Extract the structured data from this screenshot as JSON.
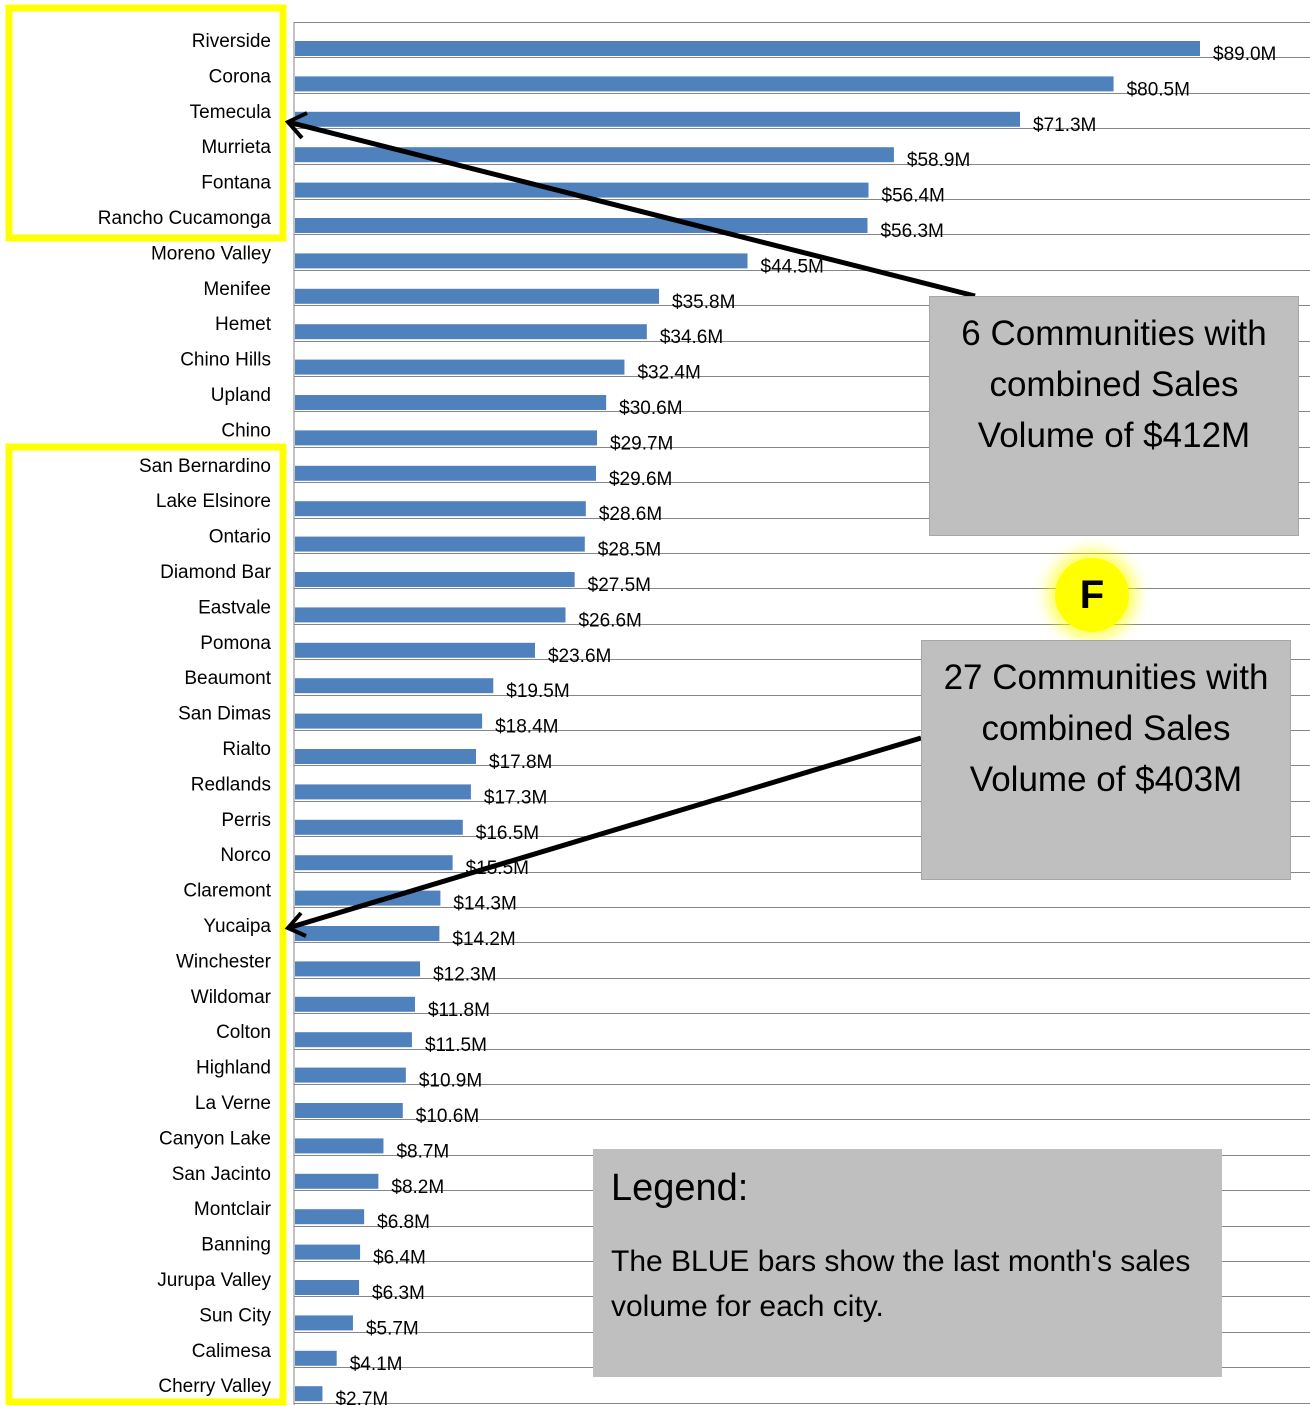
{
  "chart_data": {
    "type": "bar",
    "orientation": "horizontal",
    "categories": [
      "Riverside",
      "Corona",
      "Temecula",
      "Murrieta",
      "Fontana",
      "Rancho Cucamonga",
      "Moreno Valley",
      "Menifee",
      "Hemet",
      "Chino Hills",
      "Upland",
      "Chino",
      "San Bernardino",
      "Lake Elsinore",
      "Ontario",
      "Diamond Bar",
      "Eastvale",
      "Pomona",
      "Beaumont",
      "San Dimas",
      "Rialto",
      "Redlands",
      "Perris",
      "Norco",
      "Claremont",
      "Yucaipa",
      "Winchester",
      "Wildomar",
      "Colton",
      "Highland",
      "La Verne",
      "Canyon Lake",
      "San Jacinto",
      "Montclair",
      "Banning",
      "Jurupa Valley",
      "Sun City",
      "Calimesa",
      "Cherry Valley"
    ],
    "values": [
      89.0,
      80.5,
      71.3,
      58.9,
      56.4,
      56.3,
      44.5,
      35.8,
      34.6,
      32.4,
      30.6,
      29.7,
      29.6,
      28.6,
      28.5,
      27.5,
      26.6,
      23.6,
      19.5,
      18.4,
      17.8,
      17.3,
      16.5,
      15.5,
      14.3,
      14.2,
      12.3,
      11.8,
      11.5,
      10.9,
      10.6,
      8.7,
      8.2,
      6.8,
      6.4,
      6.3,
      5.7,
      4.1,
      2.7
    ],
    "value_labels": [
      "$89.0M",
      "$80.5M",
      "$71.3M",
      "$58.9M",
      "$56.4M",
      "$56.3M",
      "$44.5M",
      "$35.8M",
      "$34.6M",
      "$32.4M",
      "$30.6M",
      "$29.7M",
      "$29.6M",
      "$28.6M",
      "$28.5M",
      "$27.5M",
      "$26.6M",
      "$23.6M",
      "$19.5M",
      "$18.4M",
      "$17.8M",
      "$17.3M",
      "$16.5M",
      "$15.5M",
      "$14.3M",
      "$14.2M",
      "$12.3M",
      "$11.8M",
      "$11.5M",
      "$10.9M",
      "$10.6M",
      "$8.7M",
      "$8.2M",
      "$6.8M",
      "$6.4M",
      "$6.3M",
      "$5.7M",
      "$4.1M",
      "$2.7M"
    ],
    "bar_color": "#4f81bd",
    "grid": true,
    "xlim": [
      0,
      100
    ]
  },
  "callouts": {
    "top_text": "6 Communities with combined Sales Volume of $412M",
    "bottom_text": "27 Communities with combined Sales Volume of $403M"
  },
  "badge": {
    "label": "F",
    "color": "#ffff00"
  },
  "legend": {
    "title": "Legend:",
    "text": "The BLUE bars show the last month's sales volume for each city."
  },
  "colors": {
    "highlight": "#ffff00",
    "callout_bg": "#bfbfbf",
    "arrow": "#000000"
  }
}
